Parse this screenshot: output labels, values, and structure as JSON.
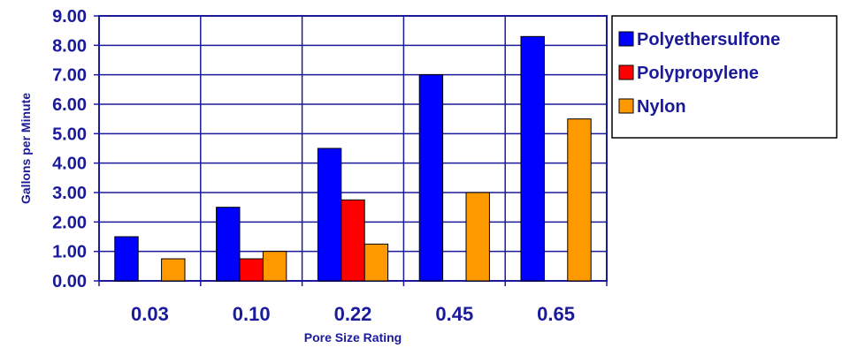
{
  "chart_data": {
    "type": "bar",
    "categories": [
      "0.03",
      "0.10",
      "0.22",
      "0.45",
      "0.65"
    ],
    "series": [
      {
        "name": "Polyethersulfone",
        "color": "#0000ff",
        "values": [
          1.5,
          2.5,
          4.5,
          7.0,
          8.3
        ]
      },
      {
        "name": "Polypropylene",
        "color": "#ff0000",
        "values": [
          null,
          0.75,
          2.75,
          null,
          null
        ]
      },
      {
        "name": "Nylon",
        "color": "#ff9900",
        "values": [
          0.75,
          1.0,
          1.25,
          3.0,
          5.5
        ]
      }
    ],
    "xlabel": "Pore Size Rating",
    "ylabel": "Gallons per Minute",
    "ylim": [
      0,
      9
    ],
    "yticks": [
      "0.00",
      "1.00",
      "2.00",
      "3.00",
      "4.00",
      "5.00",
      "6.00",
      "7.00",
      "8.00",
      "9.00"
    ],
    "grid": true,
    "legend": "right"
  }
}
